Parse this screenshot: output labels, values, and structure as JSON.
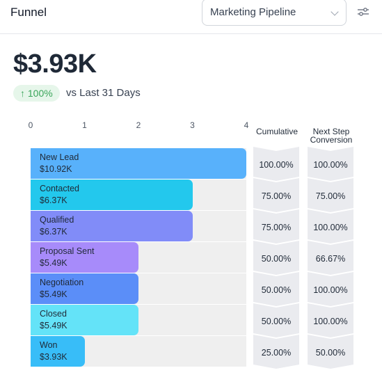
{
  "header": {
    "title": "Funnel",
    "pipeline_select": "Marketing Pipeline"
  },
  "summary": {
    "total": "$3.93K",
    "delta": "↑ 100%",
    "comparison": "vs Last 31 Days",
    "delta_color": "#3aa55a"
  },
  "chart_data": {
    "type": "bar",
    "orientation": "horizontal",
    "x_ticks": [
      "0",
      "1",
      "2",
      "3",
      "4"
    ],
    "xlim": [
      0,
      4
    ],
    "stages": [
      "New Lead",
      "Contacted",
      "Qualified",
      "Proposal Sent",
      "Negotiation",
      "Closed",
      "Won"
    ],
    "stage_values": [
      "$10.92K",
      "$6.37K",
      "$6.37K",
      "$5.49K",
      "$5.49K",
      "$5.49K",
      "$3.93K"
    ],
    "values": [
      4,
      3,
      3,
      2,
      2,
      2,
      1
    ],
    "colors": [
      "#58b1fb",
      "#23c8ed",
      "#818cf8",
      "#a78bfa",
      "#5b8ef8",
      "#64e3f8",
      "#38bdf8"
    ],
    "cumulative_header": "Cumulative",
    "cumulative": [
      "100.00%",
      "75.00%",
      "75.00%",
      "50.00%",
      "50.00%",
      "50.00%",
      "25.00%"
    ],
    "next_step_header": [
      "Next Step",
      "Conversion"
    ],
    "next_step": [
      "100.00%",
      "75.00%",
      "100.00%",
      "66.67%",
      "100.00%",
      "100.00%",
      "50.00%"
    ]
  }
}
